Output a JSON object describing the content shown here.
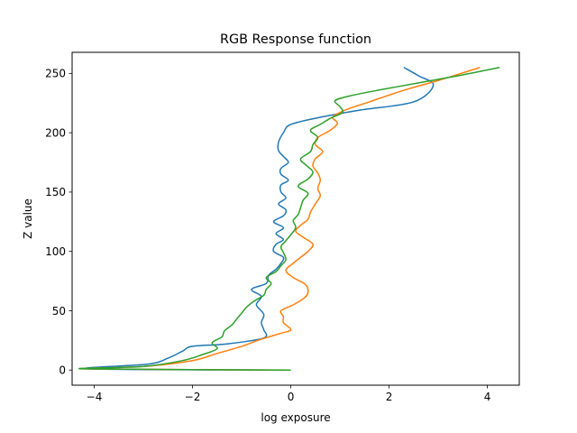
{
  "chart_data": {
    "type": "line",
    "title": "RGB Response function",
    "xlabel": "log exposure",
    "ylabel": "Z value",
    "xlim": [
      -4.45,
      4.65
    ],
    "ylim": [
      -12.75,
      267.75
    ],
    "xticks": [
      -4,
      -2,
      0,
      2,
      4
    ],
    "xtick_labels": [
      "−4",
      "−2",
      "0",
      "2",
      "4"
    ],
    "yticks": [
      0,
      50,
      100,
      150,
      200,
      250
    ],
    "ytick_labels": [
      "0",
      "50",
      "100",
      "150",
      "200",
      "250"
    ],
    "grid": false,
    "legend": false,
    "series": [
      {
        "color": "#1f77b4",
        "points": [
          [
            0.0,
            0
          ],
          [
            -4.1,
            1
          ],
          [
            -2.9,
            5
          ],
          [
            -2.5,
            10
          ],
          [
            -2.2,
            16
          ],
          [
            -2.0,
            20
          ],
          [
            -1.3,
            22
          ],
          [
            -0.55,
            27
          ],
          [
            -0.55,
            34
          ],
          [
            -0.6,
            40
          ],
          [
            -0.55,
            47
          ],
          [
            -0.7,
            55
          ],
          [
            -0.6,
            62
          ],
          [
            -0.8,
            68
          ],
          [
            -0.5,
            73
          ],
          [
            -0.45,
            80
          ],
          [
            -0.3,
            85
          ],
          [
            -0.2,
            90
          ],
          [
            -0.15,
            95
          ],
          [
            -0.35,
            100
          ],
          [
            -0.3,
            106
          ],
          [
            -0.15,
            110
          ],
          [
            -0.3,
            115
          ],
          [
            -0.15,
            120
          ],
          [
            -0.35,
            125
          ],
          [
            -0.15,
            130
          ],
          [
            -0.1,
            135
          ],
          [
            -0.25,
            140
          ],
          [
            -0.1,
            145
          ],
          [
            -0.2,
            150
          ],
          [
            -0.2,
            156
          ],
          [
            -0.05,
            160
          ],
          [
            -0.2,
            165
          ],
          [
            -0.2,
            170
          ],
          [
            -0.05,
            175
          ],
          [
            -0.15,
            180
          ],
          [
            -0.25,
            185
          ],
          [
            -0.25,
            192
          ],
          [
            -0.15,
            200
          ],
          [
            0.0,
            207
          ],
          [
            0.6,
            213
          ],
          [
            1.4,
            219
          ],
          [
            2.5,
            226
          ],
          [
            2.9,
            240
          ],
          [
            2.6,
            248
          ],
          [
            2.3,
            255
          ]
        ]
      },
      {
        "color": "#ff7f0e",
        "points": [
          [
            0.0,
            0
          ],
          [
            -4.15,
            1
          ],
          [
            -3.0,
            3
          ],
          [
            -2.0,
            8
          ],
          [
            -1.5,
            14
          ],
          [
            -1.0,
            20
          ],
          [
            -0.6,
            26
          ],
          [
            -0.2,
            31
          ],
          [
            0.0,
            34
          ],
          [
            -0.15,
            40
          ],
          [
            -0.15,
            45
          ],
          [
            -0.2,
            50
          ],
          [
            0.05,
            55
          ],
          [
            0.25,
            60
          ],
          [
            0.35,
            65
          ],
          [
            0.3,
            72
          ],
          [
            0.05,
            78
          ],
          [
            -0.1,
            84
          ],
          [
            0.05,
            90
          ],
          [
            0.2,
            95
          ],
          [
            0.35,
            100
          ],
          [
            0.45,
            106
          ],
          [
            0.25,
            112
          ],
          [
            0.1,
            117
          ],
          [
            0.2,
            122
          ],
          [
            0.35,
            127
          ],
          [
            0.4,
            133
          ],
          [
            0.5,
            140
          ],
          [
            0.6,
            147
          ],
          [
            0.55,
            153
          ],
          [
            0.6,
            160
          ],
          [
            0.55,
            166
          ],
          [
            0.45,
            172
          ],
          [
            0.5,
            178
          ],
          [
            0.65,
            184
          ],
          [
            0.5,
            190
          ],
          [
            0.55,
            196
          ],
          [
            0.8,
            202
          ],
          [
            0.95,
            208
          ],
          [
            0.85,
            213
          ],
          [
            1.05,
            218
          ],
          [
            1.3,
            222
          ],
          [
            1.6,
            226
          ],
          [
            1.95,
            231
          ],
          [
            2.4,
            237
          ],
          [
            3.0,
            244
          ],
          [
            3.85,
            255
          ]
        ]
      },
      {
        "color": "#2ca02c",
        "points": [
          [
            0.0,
            0
          ],
          [
            -4.2,
            1
          ],
          [
            -3.0,
            3
          ],
          [
            -2.2,
            8
          ],
          [
            -1.8,
            13
          ],
          [
            -1.5,
            18
          ],
          [
            -1.6,
            23
          ],
          [
            -1.4,
            28
          ],
          [
            -1.35,
            33
          ],
          [
            -1.2,
            38
          ],
          [
            -1.1,
            43
          ],
          [
            -1.0,
            48
          ],
          [
            -0.9,
            53
          ],
          [
            -0.75,
            58
          ],
          [
            -0.55,
            63
          ],
          [
            -0.5,
            68
          ],
          [
            -0.4,
            73
          ],
          [
            -0.5,
            78
          ],
          [
            -0.3,
            83
          ],
          [
            -0.2,
            88
          ],
          [
            -0.1,
            93
          ],
          [
            -0.15,
            99
          ],
          [
            -0.2,
            104
          ],
          [
            -0.1,
            109
          ],
          [
            0.0,
            114
          ],
          [
            0.1,
            120
          ],
          [
            0.05,
            126
          ],
          [
            0.15,
            131
          ],
          [
            0.2,
            137
          ],
          [
            0.25,
            143
          ],
          [
            0.35,
            149
          ],
          [
            0.15,
            155
          ],
          [
            0.35,
            161
          ],
          [
            0.45,
            167
          ],
          [
            0.3,
            173
          ],
          [
            0.2,
            178
          ],
          [
            0.4,
            184
          ],
          [
            0.45,
            190
          ],
          [
            0.55,
            196
          ],
          [
            0.4,
            202
          ],
          [
            0.6,
            207
          ],
          [
            0.8,
            212
          ],
          [
            1.05,
            217
          ],
          [
            1.0,
            222
          ],
          [
            0.9,
            227
          ],
          [
            1.2,
            231
          ],
          [
            1.8,
            236
          ],
          [
            2.6,
            242
          ],
          [
            3.4,
            248
          ],
          [
            4.25,
            255
          ]
        ]
      }
    ]
  }
}
